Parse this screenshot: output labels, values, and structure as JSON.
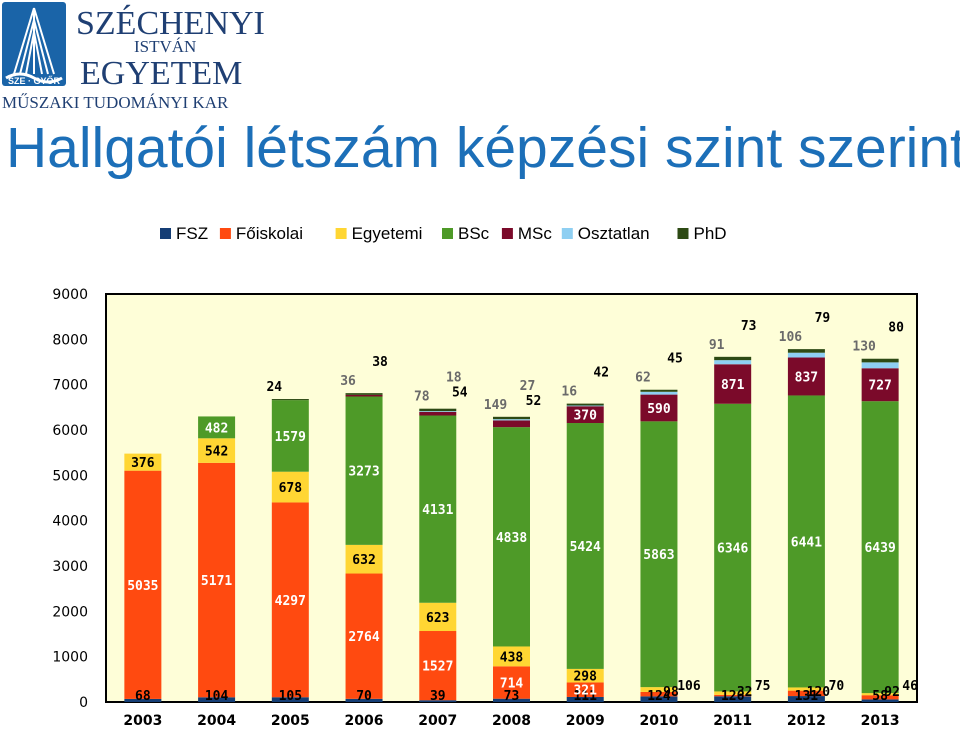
{
  "header": {
    "logo": {
      "line1": "SZÉCHENYI",
      "line2": "ISTVÁN",
      "line3": "EGYETEM",
      "badge": "SZE · GYŐR",
      "subtitle": "MŰSZAKI TUDOMÁNYI KAR"
    },
    "title": "Hallgatói létszám képzési szint szerint"
  },
  "chart_data": {
    "type": "bar",
    "stacked": true,
    "categories": [
      "2003",
      "2004",
      "2005",
      "2006",
      "2007",
      "2008",
      "2009",
      "2010",
      "2011",
      "2012",
      "2013"
    ],
    "yticks": [
      "0",
      "1000",
      "2000",
      "3000",
      "4000",
      "5000",
      "6000",
      "7000",
      "8000",
      "9000"
    ],
    "ylim": [
      0,
      9000
    ],
    "legend_position": "top",
    "plot_background": "#fefed8",
    "series": [
      {
        "name": "FSZ",
        "color": "#153e75",
        "values": [
          68,
          104,
          105,
          70,
          39,
          73,
          111,
          124,
          126,
          131,
          58
        ]
      },
      {
        "name": "Főiskolai",
        "color": "#ff4a10",
        "values": [
          5035,
          5171,
          4297,
          2764,
          1527,
          714,
          321,
          98,
          32,
          120,
          92
        ]
      },
      {
        "name": "Egyetemi",
        "color": "#ffd633",
        "values": [
          376,
          542,
          678,
          632,
          623,
          438,
          298,
          106,
          75,
          70,
          46
        ]
      },
      {
        "name": "BSc",
        "color": "#4e9a28",
        "values": [
          0,
          482,
          1579,
          3273,
          4131,
          4838,
          5424,
          5863,
          6346,
          6441,
          6439
        ]
      },
      {
        "name": "MSc",
        "color": "#7b0a2a",
        "values": [
          0,
          0,
          0,
          36,
          78,
          149,
          370,
          590,
          871,
          837,
          727
        ]
      },
      {
        "name": "Osztatlan",
        "color": "#8ecff2",
        "values": [
          0,
          0,
          0,
          0,
          18,
          27,
          16,
          62,
          91,
          106,
          130
        ]
      },
      {
        "name": "PhD",
        "color": "#2d4a14",
        "values": [
          0,
          0,
          24,
          38,
          54,
          52,
          42,
          45,
          73,
          79,
          80
        ]
      }
    ]
  }
}
